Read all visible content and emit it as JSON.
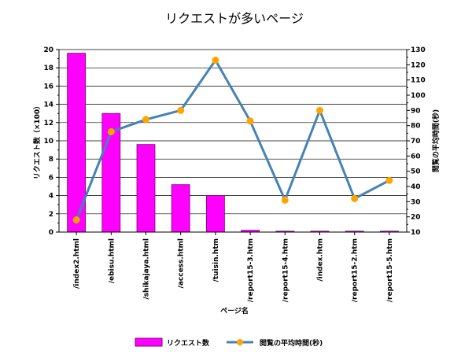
{
  "chart_data": {
    "type": "bar",
    "title": "リクエストが多いページ",
    "xlabel": "ページ名",
    "ylabel": "リクエスト数（×100）",
    "y2label": "閲覧の平均時間(秒)",
    "categories": [
      "/index2.html",
      "/ebisu.html",
      "/shikajaya.html",
      "/access.html",
      "/tuisin.htm",
      "/report15-3.htm",
      "/report15-4.htm",
      "/index.htm",
      "/report15-2.htm",
      "/report15-5.htm"
    ],
    "ylim": [
      0,
      20
    ],
    "y2lim": [
      10,
      130
    ],
    "yticks": [
      "0",
      "2",
      "4",
      "6",
      "8",
      "10",
      "12",
      "14",
      "16",
      "18",
      "20"
    ],
    "y2ticks": [
      "10",
      "20",
      "30",
      "40",
      "50",
      "60",
      "70",
      "80",
      "90",
      "100",
      "110",
      "120",
      "130"
    ],
    "grid": true,
    "legend_position": "bottom",
    "series": [
      {
        "name": "リクエスト数",
        "type": "bar",
        "axis": "left",
        "color": "#ff00ff",
        "values": [
          19.6,
          13.0,
          9.6,
          5.2,
          4.0,
          0.2,
          0.1,
          0.1,
          0.1,
          0.1
        ]
      },
      {
        "name": "閲覧の平均時間(秒)",
        "type": "line",
        "axis": "right",
        "color": "#4682b4",
        "marker_color": "#ffa500",
        "values": [
          18,
          76,
          84,
          90,
          123,
          83,
          31,
          90,
          32,
          44
        ]
      }
    ]
  }
}
